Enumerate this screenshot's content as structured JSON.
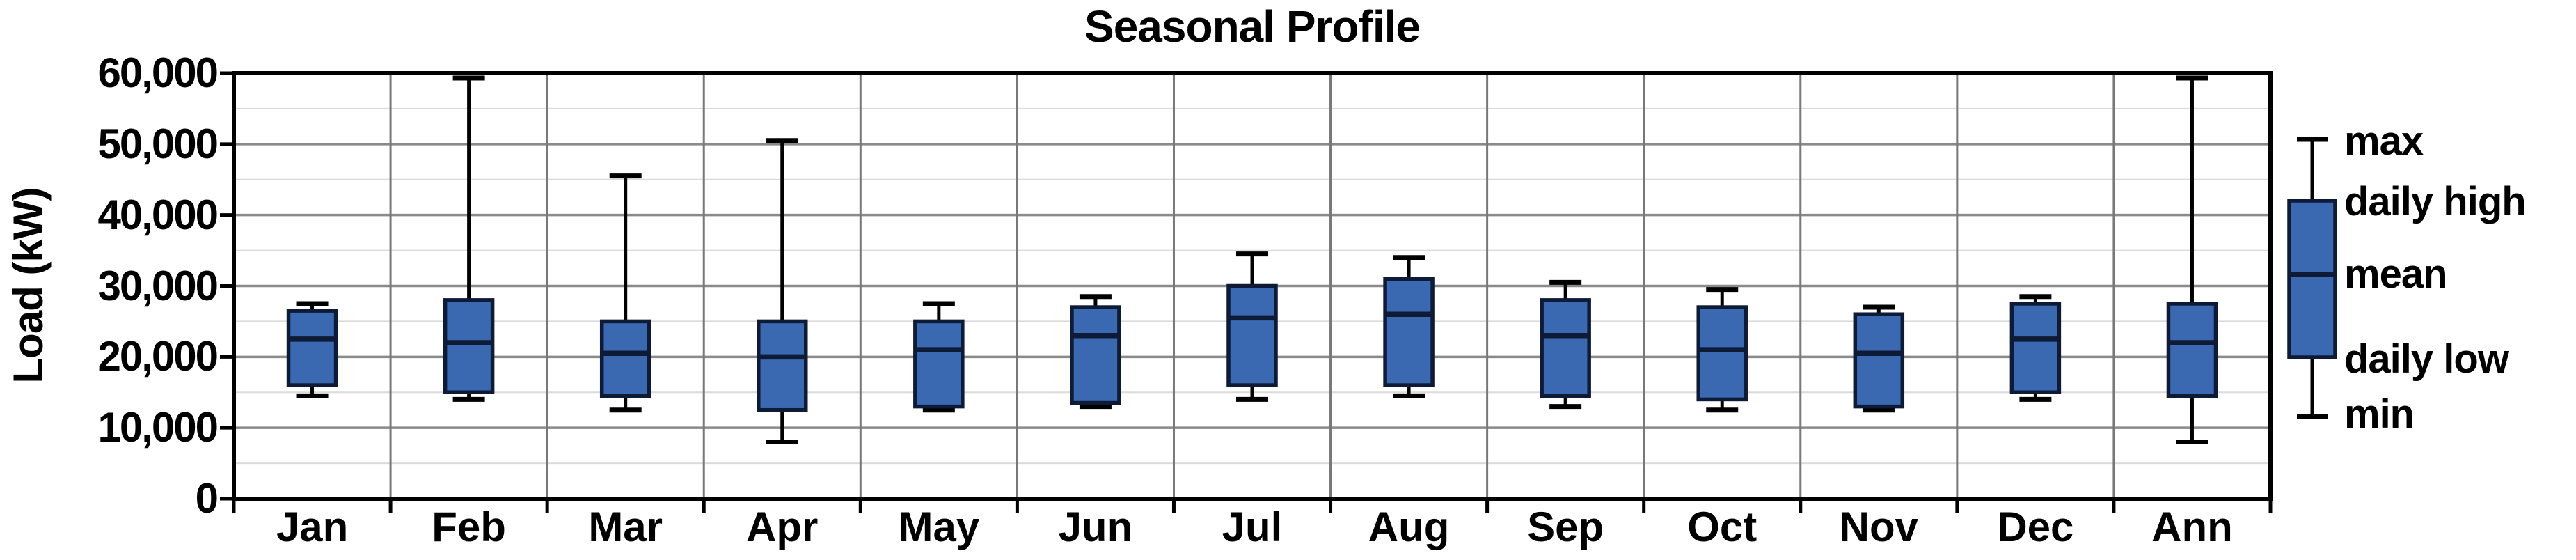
{
  "title": "Seasonal Profile",
  "chart_data": {
    "type": "boxplot",
    "title": "Seasonal Profile",
    "ylabel": "Load (kW)",
    "xlabel": "",
    "ylim": [
      0,
      60000
    ],
    "y_major_step": 10000,
    "y_minor_step": 5000,
    "grid": true,
    "legend_position": "right",
    "y_tick_labels": [
      "60,000",
      "50,000",
      "40,000",
      "30,000",
      "20,000",
      "10,000",
      "0"
    ],
    "categories": [
      "Jan",
      "Feb",
      "Mar",
      "Apr",
      "May",
      "Jun",
      "Jul",
      "Aug",
      "Sep",
      "Oct",
      "Nov",
      "Dec",
      "Ann"
    ],
    "boxes": [
      {
        "month": "Jan",
        "min": 14500,
        "daily_low": 16000,
        "mean": 22500,
        "daily_high": 26500,
        "max": 27500
      },
      {
        "month": "Feb",
        "min": 14000,
        "daily_low": 15000,
        "mean": 22000,
        "daily_high": 28000,
        "max": 60000
      },
      {
        "month": "Mar",
        "min": 12500,
        "daily_low": 14500,
        "mean": 20500,
        "daily_high": 25000,
        "max": 45500
      },
      {
        "month": "Apr",
        "min": 8000,
        "daily_low": 12500,
        "mean": 20000,
        "daily_high": 25000,
        "max": 50500
      },
      {
        "month": "May",
        "min": 12500,
        "daily_low": 13000,
        "mean": 21000,
        "daily_high": 25000,
        "max": 27500
      },
      {
        "month": "Jun",
        "min": 13000,
        "daily_low": 13500,
        "mean": 23000,
        "daily_high": 27000,
        "max": 28500
      },
      {
        "month": "Jul",
        "min": 14000,
        "daily_low": 16000,
        "mean": 25500,
        "daily_high": 30000,
        "max": 34500
      },
      {
        "month": "Aug",
        "min": 14500,
        "daily_low": 16000,
        "mean": 26000,
        "daily_high": 31000,
        "max": 34000
      },
      {
        "month": "Sep",
        "min": 13000,
        "daily_low": 14500,
        "mean": 23000,
        "daily_high": 28000,
        "max": 30500
      },
      {
        "month": "Oct",
        "min": 12500,
        "daily_low": 14000,
        "mean": 21000,
        "daily_high": 27000,
        "max": 29500
      },
      {
        "month": "Nov",
        "min": 12500,
        "daily_low": 13000,
        "mean": 20500,
        "daily_high": 26000,
        "max": 27000
      },
      {
        "month": "Dec",
        "min": 14000,
        "daily_low": 15000,
        "mean": 22500,
        "daily_high": 27500,
        "max": 28500
      },
      {
        "month": "Ann",
        "min": 8000,
        "daily_low": 14500,
        "mean": 22000,
        "daily_high": 27500,
        "max": 60000
      }
    ],
    "legend_labels": [
      "max",
      "daily high",
      "mean",
      "daily low",
      "min"
    ],
    "colors": {
      "box_fill": "#3B69B1",
      "box_border": "#0E1B36",
      "mean_line": "#0E1B36",
      "whisker": "#000000",
      "frame": "#000000",
      "major_gridline": "#8A8A8A",
      "minor_gridline": "#DBDBDB",
      "column_line": "#787878",
      "text": "#000000",
      "background": "#FFFFFF"
    }
  }
}
